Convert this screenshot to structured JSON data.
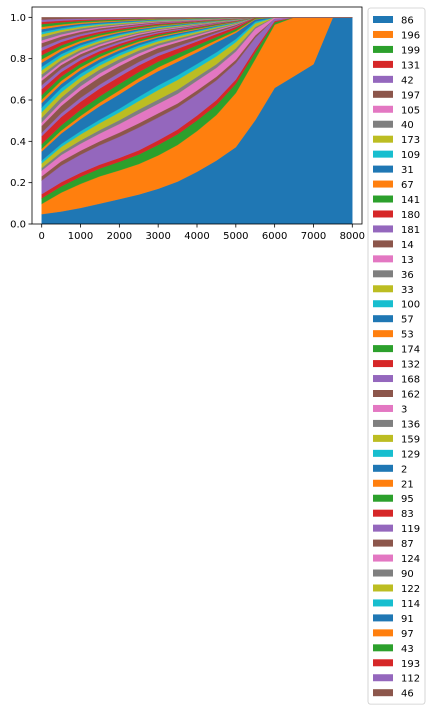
{
  "chart_data": {
    "type": "area",
    "stacked": true,
    "normalized": true,
    "xlim": [
      -250,
      8250
    ],
    "ylim": [
      0,
      1.05
    ],
    "xticks": [
      0,
      1000,
      2000,
      3000,
      4000,
      5000,
      6000,
      7000,
      8000
    ],
    "yticks": [
      0.0,
      0.2,
      0.4,
      0.6,
      0.8,
      1.0
    ],
    "ytick_labels": [
      "0.0",
      "0.2",
      "0.4",
      "0.6",
      "0.8",
      "1.0"
    ],
    "legend_placement": "outside-right",
    "x": [
      0,
      500,
      1000,
      1500,
      2000,
      2500,
      3000,
      3500,
      4000,
      4500,
      5000,
      5500,
      6000,
      6500,
      7000,
      7500,
      8000
    ],
    "series": [
      {
        "name": "86",
        "color": "#1f77b4",
        "values": [
          0.043,
          0.06,
          0.08,
          0.105,
          0.13,
          0.155,
          0.185,
          0.22,
          0.27,
          0.32,
          0.37,
          0.46,
          0.56,
          0.68,
          0.75,
          0.98,
          0.99
        ]
      },
      {
        "name": "196",
        "color": "#ff7f0e",
        "values": [
          0.045,
          0.09,
          0.12,
          0.14,
          0.15,
          0.16,
          0.175,
          0.19,
          0.21,
          0.23,
          0.26,
          0.27,
          0.26,
          0.27,
          0.22,
          0.0,
          0.0
        ]
      },
      {
        "name": "199",
        "color": "#2ca02c",
        "values": [
          0.025,
          0.03,
          0.035,
          0.04,
          0.045,
          0.05,
          0.055,
          0.055,
          0.055,
          0.05,
          0.045,
          0.03,
          0.01,
          0.0,
          0.0,
          0.0,
          0.0
        ]
      },
      {
        "name": "131",
        "color": "#d62728",
        "values": [
          0.018,
          0.02,
          0.02,
          0.02,
          0.02,
          0.022,
          0.024,
          0.025,
          0.025,
          0.025,
          0.02,
          0.015,
          0.005,
          0.0,
          0.0,
          0.0,
          0.0
        ]
      },
      {
        "name": "42",
        "color": "#9467bd",
        "values": [
          0.06,
          0.08,
          0.09,
          0.1,
          0.11,
          0.12,
          0.12,
          0.115,
          0.11,
          0.1,
          0.08,
          0.05,
          0.01,
          0.0,
          0.0,
          0.0,
          0.0
        ]
      },
      {
        "name": "197",
        "color": "#8c564b",
        "values": [
          0.018,
          0.02,
          0.02,
          0.02,
          0.022,
          0.022,
          0.022,
          0.02,
          0.02,
          0.018,
          0.015,
          0.01,
          0.0,
          0.0,
          0.0,
          0.0,
          0.0
        ]
      },
      {
        "name": "105",
        "color": "#e377c2",
        "values": [
          0.025,
          0.03,
          0.035,
          0.04,
          0.045,
          0.05,
          0.05,
          0.05,
          0.05,
          0.045,
          0.04,
          0.03,
          0.005,
          0.0,
          0.0,
          0.0,
          0.0
        ]
      },
      {
        "name": "40",
        "color": "#7f7f7f",
        "values": [
          0.012,
          0.014,
          0.016,
          0.018,
          0.02,
          0.022,
          0.022,
          0.022,
          0.02,
          0.018,
          0.015,
          0.008,
          0.0,
          0.0,
          0.0,
          0.0,
          0.0
        ]
      },
      {
        "name": "173",
        "color": "#bcbd22",
        "values": [
          0.02,
          0.025,
          0.03,
          0.035,
          0.04,
          0.045,
          0.05,
          0.05,
          0.045,
          0.04,
          0.03,
          0.015,
          0.0,
          0.0,
          0.0,
          0.0,
          0.0
        ]
      },
      {
        "name": "109",
        "color": "#17becf",
        "values": [
          0.012,
          0.014,
          0.016,
          0.018,
          0.02,
          0.022,
          0.024,
          0.024,
          0.022,
          0.02,
          0.015,
          0.008,
          0.0,
          0.0,
          0.0,
          0.0,
          0.0
        ]
      },
      {
        "name": "31",
        "color": "#1f77b4",
        "values": [
          0.04,
          0.05,
          0.06,
          0.07,
          0.075,
          0.078,
          0.075,
          0.07,
          0.06,
          0.05,
          0.03,
          0.01,
          0.0,
          0.0,
          0.0,
          0.0,
          0.0
        ]
      },
      {
        "name": "67",
        "color": "#ff7f0e",
        "values": [
          0.012,
          0.014,
          0.016,
          0.018,
          0.02,
          0.02,
          0.02,
          0.018,
          0.016,
          0.012,
          0.008,
          0.003,
          0.0,
          0.0,
          0.0,
          0.0,
          0.0
        ]
      },
      {
        "name": "141",
        "color": "#2ca02c",
        "values": [
          0.02,
          0.025,
          0.03,
          0.032,
          0.034,
          0.032,
          0.03,
          0.025,
          0.02,
          0.015,
          0.01,
          0.003,
          0.0,
          0.0,
          0.0,
          0.0,
          0.0
        ]
      },
      {
        "name": "180",
        "color": "#d62728",
        "values": [
          0.035,
          0.04,
          0.04,
          0.04,
          0.038,
          0.035,
          0.03,
          0.025,
          0.02,
          0.015,
          0.01,
          0.003,
          0.0,
          0.0,
          0.0,
          0.0,
          0.0
        ]
      },
      {
        "name": "181",
        "color": "#9467bd",
        "values": [
          0.015,
          0.018,
          0.02,
          0.02,
          0.02,
          0.018,
          0.016,
          0.013,
          0.01,
          0.007,
          0.004,
          0.0,
          0.0,
          0.0,
          0.0,
          0.0,
          0.0
        ]
      },
      {
        "name": "14",
        "color": "#8c564b",
        "values": [
          0.03,
          0.035,
          0.038,
          0.038,
          0.035,
          0.03,
          0.025,
          0.02,
          0.015,
          0.01,
          0.006,
          0.0,
          0.0,
          0.0,
          0.0,
          0.0,
          0.0
        ]
      },
      {
        "name": "13",
        "color": "#e377c2",
        "values": [
          0.015,
          0.018,
          0.02,
          0.02,
          0.018,
          0.015,
          0.012,
          0.01,
          0.008,
          0.006,
          0.003,
          0.0,
          0.0,
          0.0,
          0.0,
          0.0,
          0.0
        ]
      },
      {
        "name": "36",
        "color": "#7f7f7f",
        "values": [
          0.02,
          0.022,
          0.022,
          0.02,
          0.018,
          0.015,
          0.012,
          0.01,
          0.008,
          0.006,
          0.003,
          0.0,
          0.0,
          0.0,
          0.0,
          0.0,
          0.0
        ]
      },
      {
        "name": "33",
        "color": "#bcbd22",
        "values": [
          0.025,
          0.025,
          0.022,
          0.02,
          0.018,
          0.015,
          0.012,
          0.01,
          0.008,
          0.005,
          0.003,
          0.0,
          0.0,
          0.0,
          0.0,
          0.0,
          0.0
        ]
      },
      {
        "name": "100",
        "color": "#17becf",
        "values": [
          0.02,
          0.02,
          0.018,
          0.016,
          0.014,
          0.012,
          0.01,
          0.008,
          0.006,
          0.004,
          0.002,
          0.0,
          0.0,
          0.0,
          0.0,
          0.0,
          0.0
        ]
      },
      {
        "name": "57",
        "color": "#1f77b4",
        "values": [
          0.02,
          0.02,
          0.018,
          0.016,
          0.014,
          0.012,
          0.01,
          0.008,
          0.006,
          0.004,
          0.002,
          0.0,
          0.0,
          0.0,
          0.0,
          0.0,
          0.0
        ]
      },
      {
        "name": "53",
        "color": "#ff7f0e",
        "values": [
          0.015,
          0.015,
          0.014,
          0.012,
          0.01,
          0.008,
          0.006,
          0.005,
          0.004,
          0.003,
          0.002,
          0.0,
          0.0,
          0.0,
          0.0,
          0.0,
          0.0
        ]
      },
      {
        "name": "174",
        "color": "#2ca02c",
        "values": [
          0.02,
          0.02,
          0.018,
          0.015,
          0.012,
          0.01,
          0.008,
          0.006,
          0.005,
          0.004,
          0.002,
          0.0,
          0.0,
          0.0,
          0.0,
          0.0,
          0.0
        ]
      },
      {
        "name": "132",
        "color": "#d62728",
        "values": [
          0.025,
          0.022,
          0.018,
          0.015,
          0.012,
          0.01,
          0.008,
          0.006,
          0.005,
          0.003,
          0.002,
          0.0,
          0.0,
          0.0,
          0.0,
          0.0,
          0.0
        ]
      },
      {
        "name": "168",
        "color": "#9467bd",
        "values": [
          0.018,
          0.016,
          0.014,
          0.012,
          0.01,
          0.008,
          0.006,
          0.005,
          0.004,
          0.003,
          0.001,
          0.0,
          0.0,
          0.0,
          0.0,
          0.0,
          0.0
        ]
      },
      {
        "name": "162",
        "color": "#8c564b",
        "values": [
          0.02,
          0.018,
          0.015,
          0.012,
          0.01,
          0.008,
          0.006,
          0.005,
          0.004,
          0.003,
          0.001,
          0.0,
          0.0,
          0.0,
          0.0,
          0.0,
          0.0
        ]
      },
      {
        "name": "3",
        "color": "#e377c2",
        "values": [
          0.012,
          0.011,
          0.01,
          0.009,
          0.008,
          0.006,
          0.005,
          0.004,
          0.003,
          0.002,
          0.001,
          0.0,
          0.0,
          0.0,
          0.0,
          0.0,
          0.0
        ]
      },
      {
        "name": "136",
        "color": "#7f7f7f",
        "values": [
          0.015,
          0.013,
          0.011,
          0.009,
          0.007,
          0.006,
          0.005,
          0.004,
          0.003,
          0.002,
          0.001,
          0.0,
          0.0,
          0.0,
          0.0,
          0.0,
          0.0
        ]
      },
      {
        "name": "159",
        "color": "#bcbd22",
        "values": [
          0.018,
          0.015,
          0.012,
          0.01,
          0.008,
          0.006,
          0.005,
          0.004,
          0.003,
          0.002,
          0.001,
          0.0,
          0.0,
          0.0,
          0.0,
          0.0,
          0.0
        ]
      },
      {
        "name": "129",
        "color": "#17becf",
        "values": [
          0.015,
          0.013,
          0.011,
          0.009,
          0.007,
          0.005,
          0.004,
          0.003,
          0.002,
          0.001,
          0.001,
          0.0,
          0.0,
          0.0,
          0.0,
          0.0,
          0.0
        ]
      },
      {
        "name": "2",
        "color": "#1f77b4",
        "values": [
          0.018,
          0.015,
          0.012,
          0.01,
          0.008,
          0.006,
          0.005,
          0.004,
          0.003,
          0.002,
          0.001,
          0.0,
          0.0,
          0.0,
          0.0,
          0.0,
          0.0
        ]
      },
      {
        "name": "21",
        "color": "#ff7f0e",
        "values": [
          0.015,
          0.012,
          0.01,
          0.008,
          0.006,
          0.005,
          0.004,
          0.003,
          0.002,
          0.001,
          0.001,
          0.0,
          0.0,
          0.0,
          0.0,
          0.0,
          0.0
        ]
      },
      {
        "name": "95",
        "color": "#2ca02c",
        "values": [
          0.018,
          0.015,
          0.012,
          0.01,
          0.008,
          0.006,
          0.005,
          0.004,
          0.003,
          0.002,
          0.001,
          0.0,
          0.0,
          0.0,
          0.0,
          0.0,
          0.0
        ]
      },
      {
        "name": "83",
        "color": "#d62728",
        "values": [
          0.02,
          0.016,
          0.012,
          0.01,
          0.008,
          0.006,
          0.005,
          0.004,
          0.003,
          0.002,
          0.001,
          0.0,
          0.0,
          0.0,
          0.0,
          0.0,
          0.0
        ]
      },
      {
        "name": "119",
        "color": "#9467bd",
        "values": [
          0.015,
          0.012,
          0.01,
          0.008,
          0.006,
          0.005,
          0.004,
          0.003,
          0.002,
          0.001,
          0.001,
          0.0,
          0.0,
          0.0,
          0.0,
          0.0,
          0.0
        ]
      },
      {
        "name": "87",
        "color": "#8c564b",
        "values": [
          0.018,
          0.014,
          0.011,
          0.009,
          0.007,
          0.005,
          0.004,
          0.003,
          0.002,
          0.001,
          0.001,
          0.0,
          0.0,
          0.0,
          0.0,
          0.0,
          0.0
        ]
      },
      {
        "name": "124",
        "color": "#e377c2",
        "values": [
          0.012,
          0.01,
          0.008,
          0.006,
          0.005,
          0.004,
          0.003,
          0.002,
          0.002,
          0.001,
          0.001,
          0.0,
          0.0,
          0.0,
          0.0,
          0.0,
          0.0
        ]
      },
      {
        "name": "90",
        "color": "#7f7f7f",
        "values": [
          0.015,
          0.012,
          0.009,
          0.007,
          0.005,
          0.004,
          0.003,
          0.002,
          0.002,
          0.001,
          0.001,
          0.0,
          0.0,
          0.0,
          0.0,
          0.0,
          0.0
        ]
      },
      {
        "name": "122",
        "color": "#bcbd22",
        "values": [
          0.012,
          0.01,
          0.008,
          0.006,
          0.005,
          0.004,
          0.003,
          0.002,
          0.002,
          0.001,
          0.001,
          0.0,
          0.0,
          0.0,
          0.0,
          0.0,
          0.0
        ]
      },
      {
        "name": "114",
        "color": "#17becf",
        "values": [
          0.01,
          0.008,
          0.007,
          0.005,
          0.004,
          0.003,
          0.002,
          0.002,
          0.001,
          0.001,
          0.0,
          0.0,
          0.0,
          0.0,
          0.0,
          0.0,
          0.0
        ]
      },
      {
        "name": "91",
        "color": "#1f77b4",
        "values": [
          0.012,
          0.01,
          0.008,
          0.006,
          0.005,
          0.004,
          0.003,
          0.002,
          0.002,
          0.001,
          0.001,
          0.0,
          0.0,
          0.0,
          0.0,
          0.0,
          0.0
        ]
      },
      {
        "name": "97",
        "color": "#ff7f0e",
        "values": [
          0.01,
          0.008,
          0.006,
          0.005,
          0.004,
          0.003,
          0.002,
          0.002,
          0.001,
          0.001,
          0.0,
          0.0,
          0.0,
          0.0,
          0.0,
          0.0,
          0.0
        ]
      },
      {
        "name": "43",
        "color": "#2ca02c",
        "values": [
          0.012,
          0.01,
          0.008,
          0.006,
          0.005,
          0.004,
          0.003,
          0.002,
          0.002,
          0.001,
          0.001,
          0.0,
          0.0,
          0.0,
          0.0,
          0.0,
          0.0
        ]
      },
      {
        "name": "193",
        "color": "#d62728",
        "values": [
          0.01,
          0.008,
          0.006,
          0.005,
          0.004,
          0.003,
          0.002,
          0.002,
          0.001,
          0.001,
          0.0,
          0.0,
          0.0,
          0.0,
          0.0,
          0.0,
          0.0
        ]
      },
      {
        "name": "112",
        "color": "#9467bd",
        "values": [
          0.01,
          0.008,
          0.006,
          0.005,
          0.004,
          0.003,
          0.002,
          0.002,
          0.001,
          0.001,
          0.0,
          0.0,
          0.0,
          0.0,
          0.0,
          0.0,
          0.0
        ]
      },
      {
        "name": "46",
        "color": "#8c564b",
        "values": [
          0.01,
          0.008,
          0.006,
          0.005,
          0.004,
          0.003,
          0.002,
          0.002,
          0.001,
          0.001,
          0.0,
          0.0,
          0.0,
          0.0,
          0.0,
          0.0,
          0.0
        ]
      }
    ]
  }
}
